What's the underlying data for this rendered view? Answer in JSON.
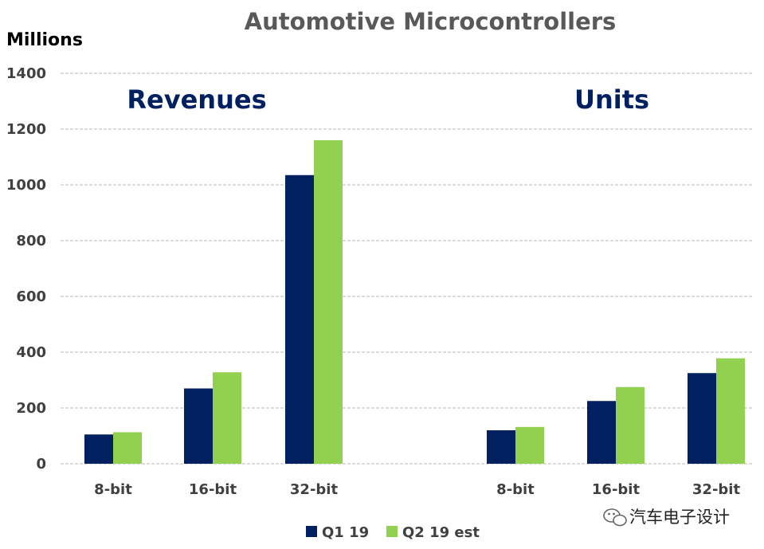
{
  "chart_data": {
    "type": "bar",
    "title": "Automotive Microcontrollers",
    "ylabel": "Millions",
    "xlabel": "",
    "ylim": [
      0,
      1400
    ],
    "yticks": [
      0,
      200,
      400,
      600,
      800,
      1000,
      1200,
      1400
    ],
    "grid": true,
    "legend_position": "bottom-center",
    "groups": [
      {
        "label": "Revenues",
        "categories": [
          "8-bit",
          "16-bit",
          "32-bit"
        ],
        "series": [
          {
            "name": "Q1 19",
            "values": [
              105,
              270,
              1035
            ]
          },
          {
            "name": "Q2 19 est",
            "values": [
              113,
              328,
              1160
            ]
          }
        ]
      },
      {
        "label": "Units",
        "categories": [
          "8-bit",
          "16-bit",
          "32-bit"
        ],
        "series": [
          {
            "name": "Q1 19",
            "values": [
              120,
              225,
              325
            ]
          },
          {
            "name": "Q2 19 est",
            "values": [
              132,
              275,
              378
            ]
          }
        ]
      }
    ],
    "legend": [
      {
        "name": "Q1 19",
        "color": "#002060"
      },
      {
        "name": "Q2 19 est",
        "color": "#92D050"
      }
    ]
  },
  "colors": {
    "series_1": "#002060",
    "series_2": "#92D050",
    "group_label": "#002060"
  },
  "watermark": {
    "text": "汽车电子设计",
    "icon": "wechat-icon"
  }
}
